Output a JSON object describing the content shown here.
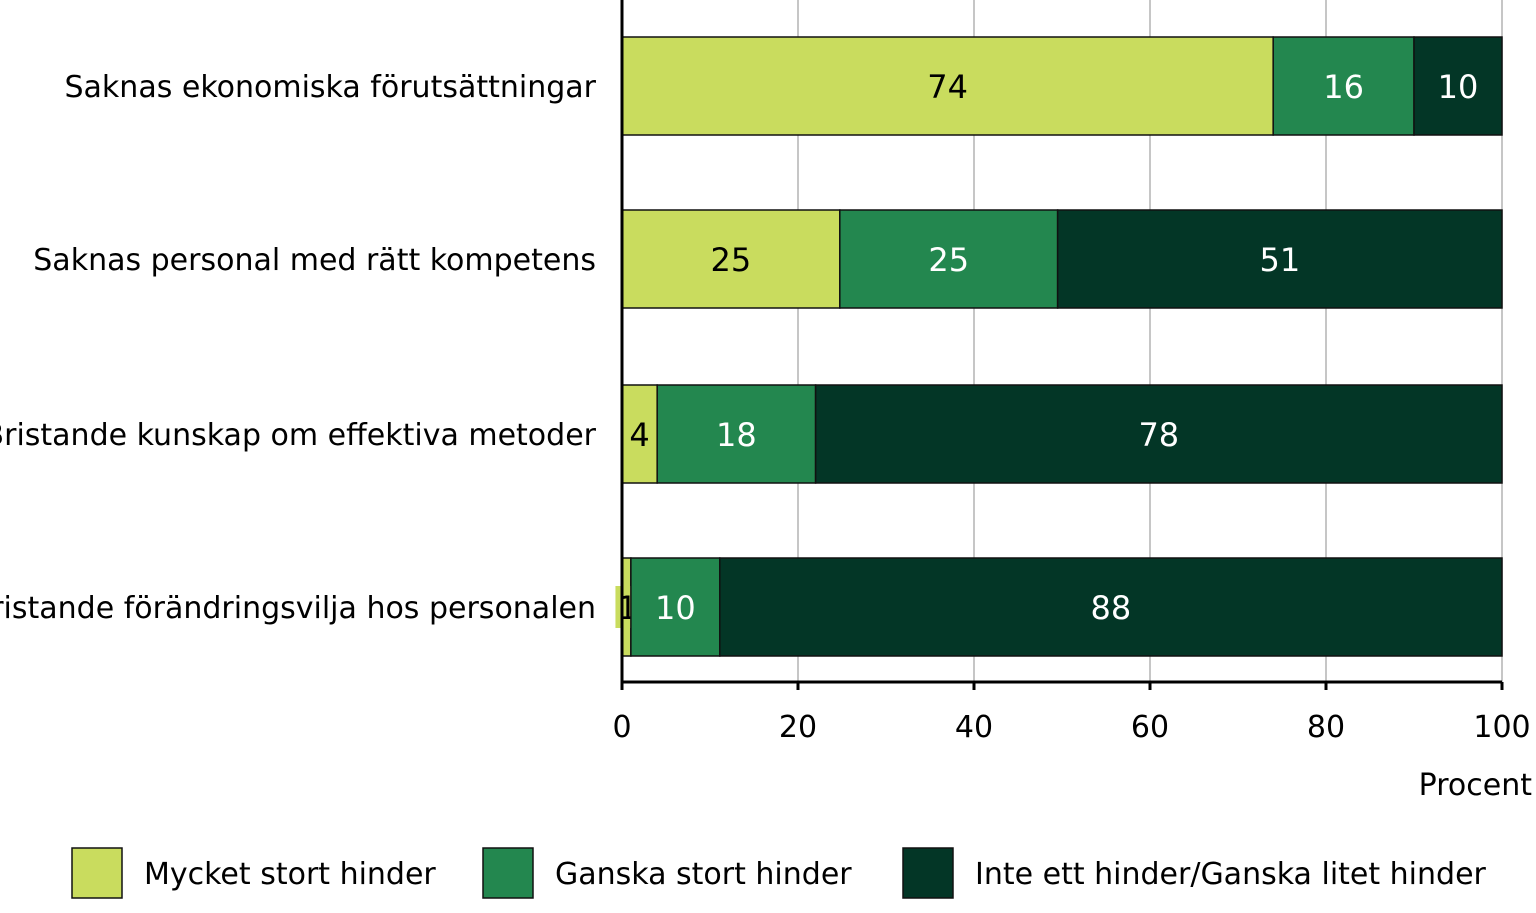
{
  "chart_data": {
    "type": "bar",
    "orientation": "horizontal",
    "stacked": true,
    "categories": [
      "Saknas ekonomiska förutsättningar",
      "Saknas personal med rätt kompetens",
      "Bristande kunskap om effektiva metoder",
      "Bristande förändringsvilja hos personalen"
    ],
    "series": [
      {
        "name": "Mycket stort hinder",
        "color": "#c9dc5e",
        "label_color": "#000000",
        "values": [
          74,
          25,
          4,
          1
        ]
      },
      {
        "name": "Ganska stort hinder",
        "color": "#23874f",
        "label_color": "#ffffff",
        "values": [
          16,
          25,
          18,
          10
        ]
      },
      {
        "name": "Inte ett hinder/Ganska litet hinder",
        "color": "#033626",
        "label_color": "#ffffff",
        "values": [
          10,
          51,
          78,
          88
        ]
      }
    ],
    "xlabel": "Procent",
    "xlim": [
      0,
      100
    ],
    "xticks": [
      "0",
      "20",
      "40",
      "60",
      "80",
      "100"
    ],
    "grid": "vertical",
    "legend": "bottom"
  }
}
